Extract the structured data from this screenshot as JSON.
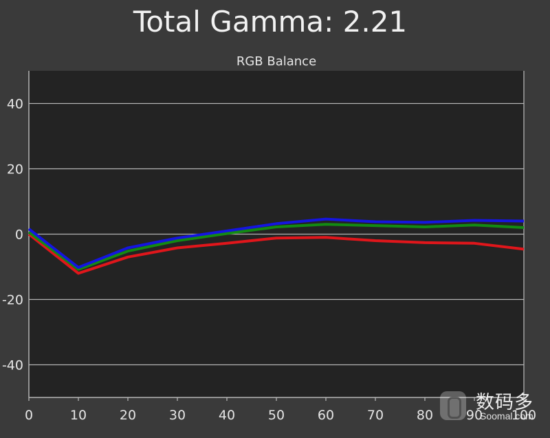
{
  "header": {
    "title": "Total Gamma: 2.21"
  },
  "chart_data": {
    "type": "line",
    "title": "RGB Balance",
    "xlabel": "",
    "ylabel": "",
    "x": [
      0,
      10,
      20,
      30,
      40,
      50,
      60,
      70,
      80,
      90,
      100
    ],
    "xlim": [
      0,
      100
    ],
    "ylim": [
      -50,
      50
    ],
    "x_ticks": [
      "0",
      "10",
      "20",
      "30",
      "40",
      "50",
      "60",
      "70",
      "80",
      "90",
      "100"
    ],
    "y_ticks": [
      "40",
      "20",
      "0",
      "-20",
      "-40"
    ],
    "grid": "horizontal",
    "series": [
      {
        "color": "#e0161b",
        "values": [
          0.0,
          -12.0,
          -7.0,
          -4.2,
          -2.8,
          -1.2,
          -1.0,
          -2.0,
          -2.6,
          -2.8,
          -4.6
        ]
      },
      {
        "color": "#138a13",
        "values": [
          0.6,
          -10.8,
          -5.2,
          -2.0,
          0.2,
          2.2,
          3.0,
          2.6,
          2.2,
          2.8,
          2.0
        ]
      },
      {
        "color": "#1515e0",
        "values": [
          1.6,
          -10.2,
          -4.2,
          -1.2,
          1.0,
          3.2,
          4.6,
          3.8,
          3.6,
          4.2,
          4.0
        ]
      }
    ],
    "colors": {
      "plot_background": "#232323",
      "page_background": "#3a3a3a",
      "grid": "#b4b4b4",
      "text": "#e6e6e6"
    }
  },
  "watermark": {
    "cn_text": "数码多",
    "en_text": "Soomal.com"
  }
}
